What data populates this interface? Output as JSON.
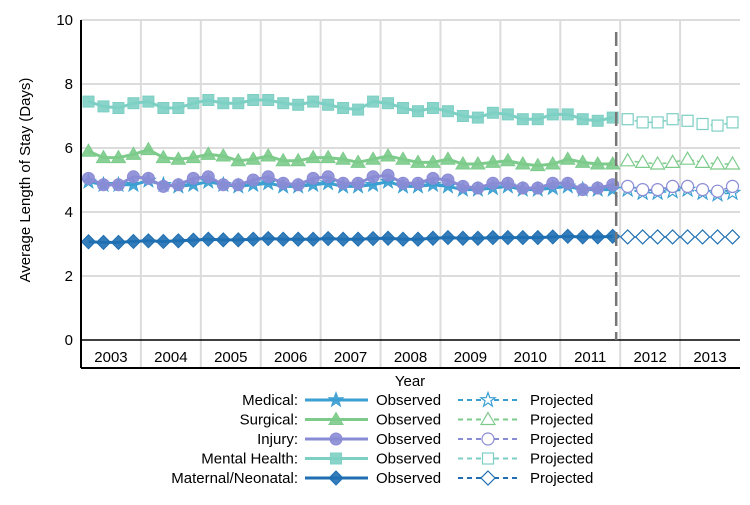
{
  "chart_data": {
    "type": "line",
    "title": "",
    "xlabel": "Year",
    "ylabel": "Average Length of Stay (Days)",
    "ylim": [
      0,
      10
    ],
    "yticks": [
      "0",
      "2",
      "4",
      "6",
      "8",
      "10"
    ],
    "xtick_labels": [
      "2003",
      "2004",
      "2005",
      "2006",
      "2007",
      "2008",
      "2009",
      "2010",
      "2011",
      "2012",
      "2013"
    ],
    "x_frequency": "quarterly",
    "grid": true,
    "projection_start": "2012",
    "observed_label": "Observed",
    "projected_label": "Projected",
    "legend_position": "bottom",
    "series": [
      {
        "name": "Medical:",
        "marker": "star",
        "color": "#3b9fd1",
        "observed": [
          4.95,
          4.85,
          4.85,
          4.85,
          4.98,
          4.85,
          4.8,
          4.85,
          4.95,
          4.85,
          4.8,
          4.85,
          4.9,
          4.8,
          4.8,
          4.85,
          4.9,
          4.8,
          4.8,
          4.85,
          4.95,
          4.8,
          4.8,
          4.85,
          4.8,
          4.7,
          4.7,
          4.75,
          4.8,
          4.7,
          4.7,
          4.75,
          4.8,
          4.7,
          4.7,
          4.7
        ],
        "projected": [
          4.7,
          4.6,
          4.6,
          4.65,
          4.7,
          4.6,
          4.55,
          4.6
        ]
      },
      {
        "name": "Surgical:",
        "marker": "triangle",
        "color": "#7ccb8b",
        "observed": [
          5.9,
          5.7,
          5.7,
          5.8,
          5.95,
          5.7,
          5.65,
          5.7,
          5.8,
          5.75,
          5.6,
          5.65,
          5.75,
          5.6,
          5.6,
          5.7,
          5.7,
          5.65,
          5.55,
          5.65,
          5.75,
          5.65,
          5.55,
          5.55,
          5.65,
          5.5,
          5.5,
          5.55,
          5.6,
          5.5,
          5.45,
          5.5,
          5.65,
          5.55,
          5.5,
          5.5
        ],
        "projected": [
          5.6,
          5.55,
          5.5,
          5.55,
          5.65,
          5.55,
          5.5,
          5.5
        ]
      },
      {
        "name": "Injury:",
        "marker": "circle",
        "color": "#8a8bd5",
        "observed": [
          5.05,
          4.85,
          4.85,
          5.1,
          5.05,
          4.8,
          4.85,
          5.05,
          5.1,
          4.85,
          4.85,
          5.0,
          5.1,
          4.9,
          4.85,
          5.05,
          5.1,
          4.9,
          4.9,
          5.1,
          5.15,
          4.9,
          4.9,
          5.05,
          5.0,
          4.8,
          4.75,
          4.9,
          4.9,
          4.75,
          4.75,
          4.9,
          4.9,
          4.7,
          4.75,
          4.85
        ],
        "projected": [
          4.8,
          4.7,
          4.7,
          4.8,
          4.8,
          4.7,
          4.65,
          4.8
        ]
      },
      {
        "name": "Mental Health:",
        "marker": "square",
        "color": "#7dcfc4",
        "observed": [
          7.45,
          7.3,
          7.25,
          7.4,
          7.45,
          7.25,
          7.25,
          7.4,
          7.5,
          7.4,
          7.4,
          7.5,
          7.5,
          7.4,
          7.35,
          7.45,
          7.35,
          7.25,
          7.2,
          7.45,
          7.4,
          7.25,
          7.15,
          7.25,
          7.15,
          7.0,
          6.95,
          7.1,
          7.05,
          6.9,
          6.9,
          7.05,
          7.05,
          6.9,
          6.85,
          6.95
        ],
        "projected": [
          6.9,
          6.8,
          6.8,
          6.9,
          6.85,
          6.75,
          6.7,
          6.8
        ]
      },
      {
        "name": "Maternal/Neonatal:",
        "marker": "diamond",
        "color": "#1f6fb2",
        "observed": [
          3.07,
          3.05,
          3.05,
          3.08,
          3.1,
          3.08,
          3.1,
          3.12,
          3.15,
          3.13,
          3.13,
          3.15,
          3.17,
          3.15,
          3.15,
          3.15,
          3.17,
          3.15,
          3.15,
          3.17,
          3.18,
          3.15,
          3.15,
          3.18,
          3.2,
          3.18,
          3.18,
          3.2,
          3.2,
          3.2,
          3.2,
          3.22,
          3.24,
          3.22,
          3.22,
          3.24
        ],
        "projected": [
          3.22,
          3.22,
          3.22,
          3.22,
          3.22,
          3.22,
          3.22,
          3.22
        ]
      }
    ]
  }
}
